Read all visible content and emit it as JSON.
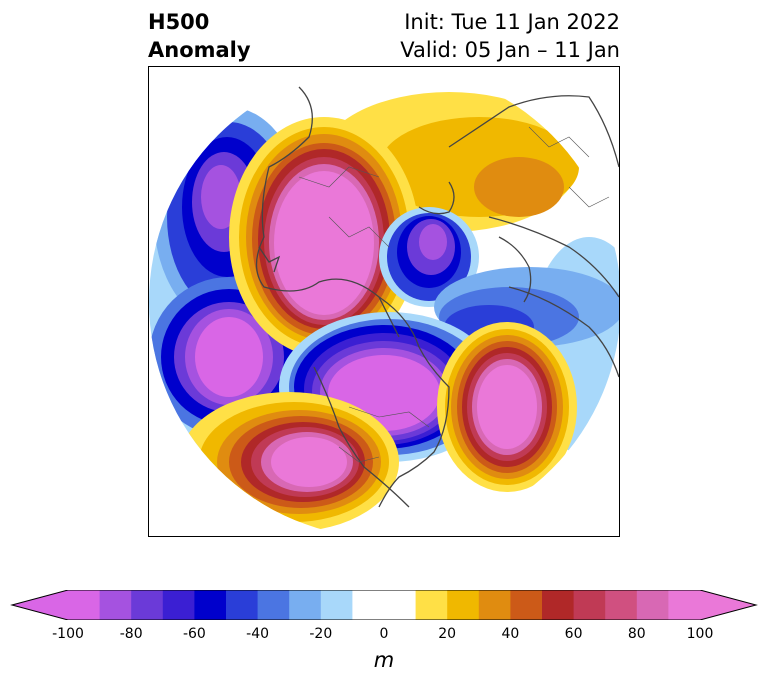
{
  "title": {
    "left_line1": "H500",
    "left_line2": "Anomaly",
    "right_line1": "Init: Tue 11 Jan 2022",
    "right_line2": "Valid: 05 Jan – 11 Jan"
  },
  "colorbar": {
    "colors": [
      "#d966e6",
      "#a552e0",
      "#6b3ad8",
      "#3b1fd3",
      "#0000cc",
      "#2a3ed8",
      "#4b75e2",
      "#78aef0",
      "#a8d8fa",
      "#ffffff",
      "#ffffff",
      "#ffe046",
      "#f0b800",
      "#e08c10",
      "#cc5a18",
      "#b02828",
      "#c03a55",
      "#d05080",
      "#d868b4",
      "#ea78d8"
    ],
    "ticks": [
      "-100",
      "-80",
      "-60",
      "-40",
      "-20",
      "0",
      "20",
      "40",
      "60",
      "80",
      "100"
    ],
    "units": "m"
  },
  "map": {
    "projection": "north-polar-stereographic",
    "variable": "500 hPa geopotential height anomaly",
    "coastline_color": "#444444"
  }
}
